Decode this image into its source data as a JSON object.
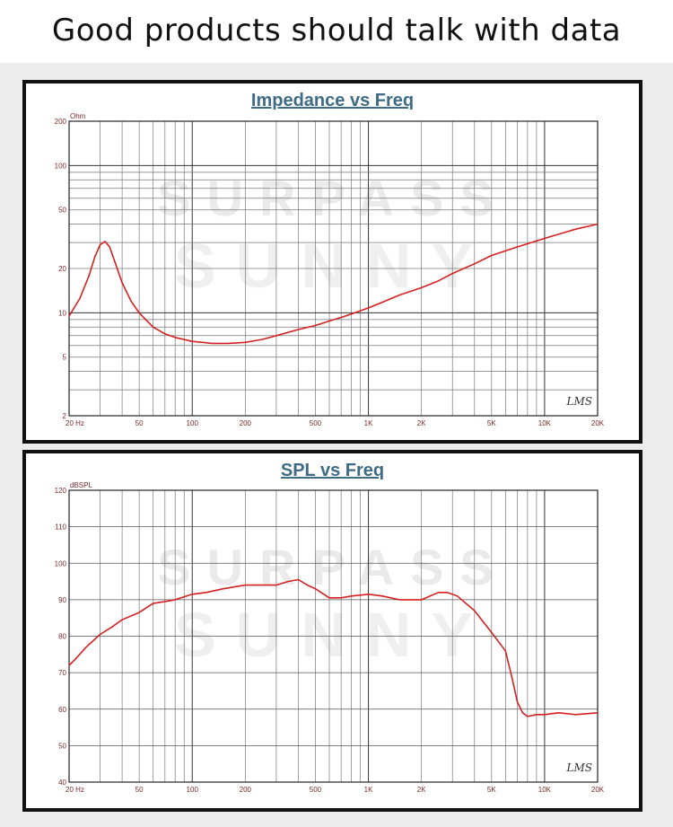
{
  "page": {
    "title": "Good products should talk with data"
  },
  "watermark": {
    "line1": "SURPASS",
    "line2": "SUNNY"
  },
  "colors": {
    "curve": "#d42020",
    "heading": "#3e6b86",
    "tick": "#7a2a2a"
  },
  "chart_data": [
    {
      "type": "line",
      "title": "Impedance vs Freq",
      "ylabel": "Ohm",
      "xscale": "log",
      "yscale": "log",
      "xlim": [
        20,
        20000
      ],
      "ylim": [
        2,
        200
      ],
      "xticks": [
        {
          "value": 20,
          "label": "20  Hz"
        },
        {
          "value": 50,
          "label": "50"
        },
        {
          "value": 100,
          "label": "100"
        },
        {
          "value": 200,
          "label": "200"
        },
        {
          "value": 500,
          "label": "500"
        },
        {
          "value": 1000,
          "label": "1K"
        },
        {
          "value": 2000,
          "label": "2K"
        },
        {
          "value": 5000,
          "label": "5K"
        },
        {
          "value": 10000,
          "label": "10K"
        },
        {
          "value": 20000,
          "label": "20K"
        }
      ],
      "yticks": [
        {
          "value": 2,
          "label": "2"
        },
        {
          "value": 5,
          "label": "5"
        },
        {
          "value": 10,
          "label": "10"
        },
        {
          "value": 20,
          "label": "20"
        },
        {
          "value": 50,
          "label": "50"
        },
        {
          "value": 100,
          "label": "100"
        },
        {
          "value": 200,
          "label": "200"
        }
      ],
      "grid": true,
      "brand": "LMS",
      "series": [
        {
          "x": [
            20,
            23,
            26,
            28,
            30,
            32,
            34,
            36,
            40,
            45,
            50,
            60,
            70,
            80,
            100,
            130,
            160,
            200,
            250,
            300,
            400,
            500,
            600,
            700,
            800,
            1000,
            1200,
            1500,
            2000,
            2500,
            3000,
            4000,
            5000,
            7000,
            10000,
            15000,
            20000
          ],
          "y": [
            9.5,
            12.5,
            18,
            24,
            29,
            30.5,
            28,
            23,
            16,
            12,
            10,
            8,
            7.2,
            6.8,
            6.4,
            6.2,
            6.2,
            6.3,
            6.6,
            7.0,
            7.7,
            8.2,
            8.8,
            9.3,
            9.8,
            10.8,
            11.8,
            13.2,
            14.8,
            16.5,
            18.5,
            21.5,
            24.5,
            28,
            32,
            37,
            40
          ]
        }
      ]
    },
    {
      "type": "line",
      "title": "SPL vs Freq",
      "ylabel": "dBSPL",
      "xscale": "log",
      "xlim": [
        20,
        20000
      ],
      "ylim": [
        40,
        120
      ],
      "xticks": [
        {
          "value": 20,
          "label": "20  Hz"
        },
        {
          "value": 50,
          "label": "50"
        },
        {
          "value": 100,
          "label": "100"
        },
        {
          "value": 200,
          "label": "200"
        },
        {
          "value": 500,
          "label": "500"
        },
        {
          "value": 1000,
          "label": "1K"
        },
        {
          "value": 2000,
          "label": "2K"
        },
        {
          "value": 5000,
          "label": "5K"
        },
        {
          "value": 10000,
          "label": "10K"
        },
        {
          "value": 20000,
          "label": "20K"
        }
      ],
      "yticks": [
        {
          "value": 40,
          "label": "40"
        },
        {
          "value": 50,
          "label": "50"
        },
        {
          "value": 60,
          "label": "60"
        },
        {
          "value": 70,
          "label": "70"
        },
        {
          "value": 80,
          "label": "80"
        },
        {
          "value": 90,
          "label": "90"
        },
        {
          "value": 100,
          "label": "100"
        },
        {
          "value": 110,
          "label": "110"
        },
        {
          "value": 120,
          "label": "120"
        }
      ],
      "grid": true,
      "brand": "LMS",
      "series": [
        {
          "x": [
            20,
            22,
            25,
            30,
            35,
            40,
            50,
            60,
            70,
            80,
            100,
            120,
            150,
            200,
            250,
            300,
            350,
            400,
            450,
            500,
            600,
            700,
            800,
            1000,
            1200,
            1500,
            2000,
            2500,
            2800,
            3200,
            4000,
            5000,
            6000,
            6500,
            7000,
            7500,
            8000,
            9000,
            10000,
            12000,
            15000,
            20000
          ],
          "y": [
            72,
            74,
            77,
            80.5,
            82.5,
            84.5,
            86.5,
            89,
            89.5,
            90,
            91.5,
            92,
            93,
            94,
            94,
            94,
            95,
            95.5,
            94,
            93,
            90.5,
            90.5,
            91,
            91.5,
            91,
            90,
            90,
            92,
            92,
            91,
            87,
            81,
            76,
            69,
            62,
            59,
            58,
            58.5,
            58.5,
            59,
            58.5,
            59
          ]
        }
      ]
    }
  ]
}
